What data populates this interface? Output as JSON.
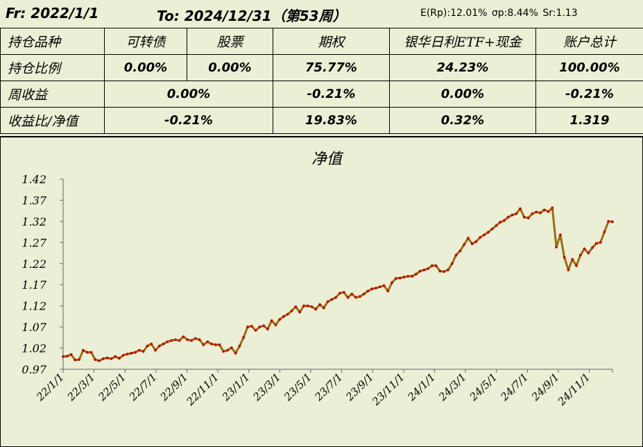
{
  "header": {
    "from_label": "Fr: 2022/1/1",
    "to_label": "To:   2024/12/31（第53周）",
    "stats": "E(Rp):12.01%  σp:8.44%  Sr:1.13"
  },
  "summary_table": {
    "columns": [
      "持仓品种",
      "可转债",
      "股票",
      "期权",
      "银华日利ETF+现金",
      "账户总计"
    ],
    "rows": [
      {
        "label": "持仓比例",
        "cells": [
          "0.00%",
          "0.00%",
          "75.77%",
          "24.23%",
          "100.00%"
        ]
      },
      {
        "label": "周收益",
        "cells": [
          "0.00%",
          "-0.21%",
          "0.00%",
          "-0.21%"
        ]
      },
      {
        "label": "收益比/净值",
        "cells": [
          "-0.21%",
          "19.83%",
          "0.32%",
          "1.319"
        ]
      }
    ]
  },
  "colors": {
    "background": "#eaefd5",
    "line": "#9c6a10",
    "markers": "#c00000"
  },
  "chart_data": {
    "type": "line",
    "title": "净值",
    "xlabel": "",
    "ylabel": "",
    "ylim": [
      0.97,
      1.42
    ],
    "yticks": [
      "1.42",
      "1.37",
      "1.32",
      "1.27",
      "1.22",
      "1.17",
      "1.12",
      "1.07",
      "1.02",
      "0.97"
    ],
    "xticks": [
      "22/1/1",
      "22/3/1",
      "22/5/1",
      "22/7/1",
      "22/9/1",
      "22/11/1",
      "23/1/1",
      "23/3/1",
      "23/5/1",
      "23/7/1",
      "23/9/1",
      "23/11/1",
      "24/1/1",
      "24/3/1",
      "24/5/1",
      "24/7/1",
      "24/9/1",
      "24/11/1"
    ],
    "grid": false,
    "series": [
      {
        "values": [
          1.0,
          1.001,
          1.005,
          0.992,
          0.993,
          1.015,
          1.01,
          1.01,
          0.993,
          0.99,
          0.995,
          0.997,
          0.995,
          1.0,
          0.996,
          1.003,
          1.006,
          1.008,
          1.01,
          1.015,
          1.012,
          1.025,
          1.03,
          1.015,
          1.025,
          1.03,
          1.035,
          1.038,
          1.04,
          1.038,
          1.047,
          1.04,
          1.038,
          1.043,
          1.04,
          1.028,
          1.035,
          1.03,
          1.028,
          1.028,
          1.012,
          1.015,
          1.021,
          1.008,
          1.025,
          1.045,
          1.07,
          1.072,
          1.062,
          1.07,
          1.073,
          1.065,
          1.085,
          1.075,
          1.088,
          1.095,
          1.1,
          1.108,
          1.118,
          1.105,
          1.12,
          1.12,
          1.118,
          1.112,
          1.123,
          1.115,
          1.13,
          1.135,
          1.14,
          1.15,
          1.152,
          1.14,
          1.148,
          1.14,
          1.142,
          1.148,
          1.155,
          1.16,
          1.162,
          1.165,
          1.168,
          1.155,
          1.175,
          1.185,
          1.186,
          1.188,
          1.19,
          1.19,
          1.195,
          1.202,
          1.205,
          1.208,
          1.215,
          1.215,
          1.202,
          1.201,
          1.205,
          1.22,
          1.24,
          1.25,
          1.265,
          1.28,
          1.267,
          1.272,
          1.282,
          1.288,
          1.294,
          1.302,
          1.31,
          1.318,
          1.322,
          1.33,
          1.335,
          1.338,
          1.35,
          1.33,
          1.328,
          1.338,
          1.342,
          1.34,
          1.347,
          1.343,
          1.352,
          1.259,
          1.288,
          1.235,
          1.205,
          1.23,
          1.215,
          1.24,
          1.255,
          1.245,
          1.258,
          1.268,
          1.27,
          1.295,
          1.32,
          1.319
        ]
      }
    ]
  }
}
